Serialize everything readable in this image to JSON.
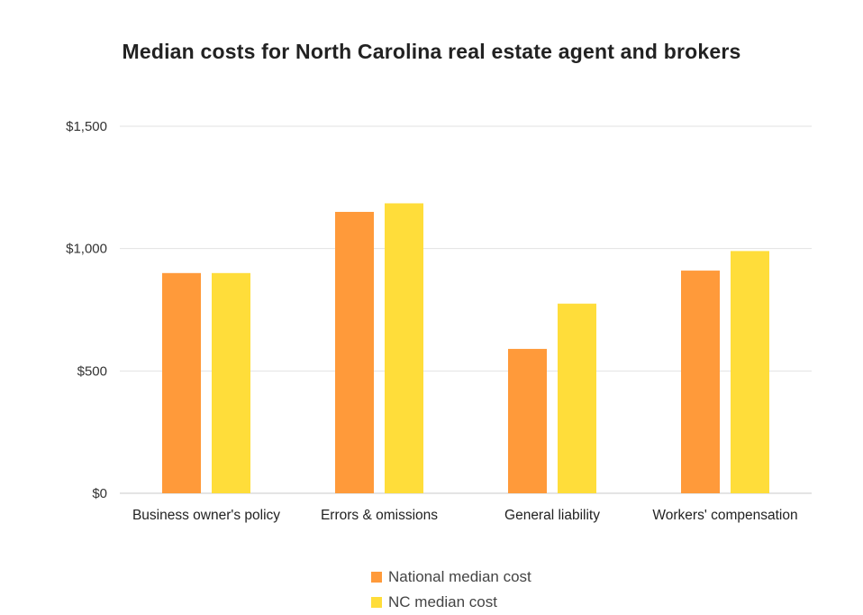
{
  "chart_data": {
    "type": "bar",
    "title": "Median costs for North Carolina real estate agent and brokers",
    "categories": [
      "Business owner's policy",
      "Errors & omissions",
      "General liability",
      "Workers' compensation"
    ],
    "series": [
      {
        "name": "National median cost",
        "values": [
          900,
          1150,
          590,
          910
        ],
        "color": "#FF9A3A"
      },
      {
        "name": "NC median cost",
        "values": [
          900,
          1185,
          775,
          990
        ],
        "color": "#FFDD3A"
      }
    ],
    "ylim": [
      0,
      1500
    ],
    "yticks": [
      0,
      500,
      1000,
      1500
    ],
    "ytick_labels": [
      "$0",
      "$500",
      "$1,000",
      "$1,500"
    ],
    "grid": true,
    "legend_position": "bottom"
  }
}
